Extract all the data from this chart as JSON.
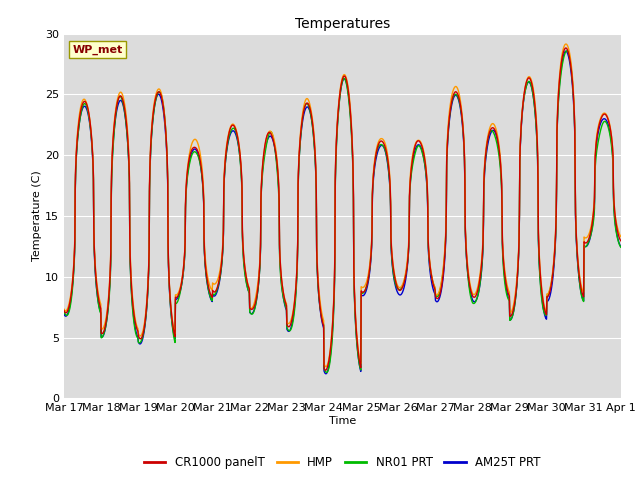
{
  "title": "Temperatures",
  "xlabel": "Time",
  "ylabel": "Temperature (C)",
  "ylim": [
    0,
    30
  ],
  "bg_color": "#dcdcdc",
  "fig_color": "#ffffff",
  "series_colors": {
    "CR1000 panelT": "#cc0000",
    "HMP": "#ff9900",
    "NR01 PRT": "#00bb00",
    "AM25T PRT": "#0000cc"
  },
  "series_linewidth": 1.0,
  "legend_labels": [
    "CR1000 panelT",
    "HMP",
    "NR01 PRT",
    "AM25T PRT"
  ],
  "station_label": "WP_met",
  "station_label_color": "#880000",
  "station_label_bg": "#ffffcc",
  "tick_labels": [
    "Mar 17",
    "Mar 18",
    "Mar 19",
    "Mar 20",
    "Mar 21",
    "Mar 22",
    "Mar 23",
    "Mar 24",
    "Mar 25",
    "Mar 26",
    "Mar 27",
    "Mar 28",
    "Mar 29",
    "Mar 30",
    "Mar 31",
    "Apr 1"
  ],
  "yticks": [
    0,
    5,
    10,
    15,
    20,
    25,
    30
  ],
  "grid_color": "#ffffff",
  "font_size": 8,
  "title_fontsize": 10
}
